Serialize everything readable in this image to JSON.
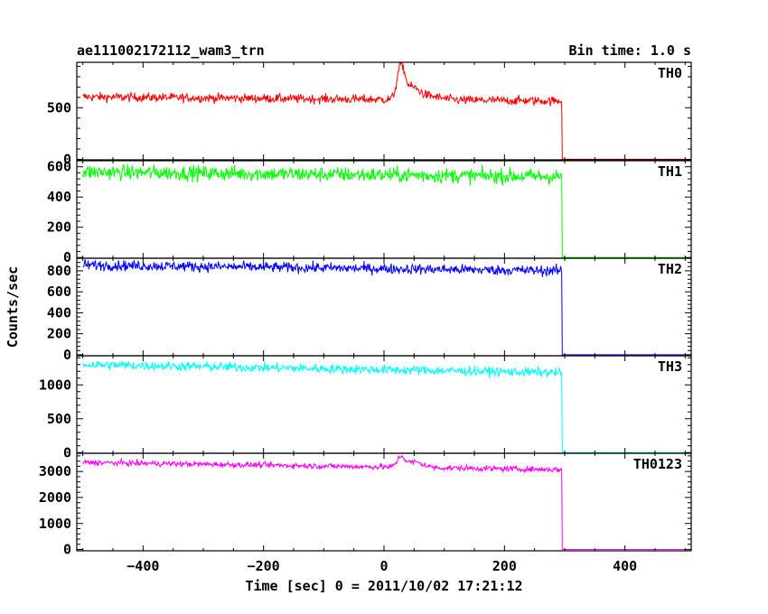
{
  "chart_data": {
    "type": "line",
    "title_left": "ae111002172112_wam3_trn",
    "title_right": "Bin time: 1.0 s",
    "xlabel": "Time [sec] 0 = 2011/10/02 17:21:12",
    "ylabel": "Counts/sec",
    "xlim": [
      -510,
      510
    ],
    "xticks": [
      -400,
      -200,
      0,
      200,
      400
    ],
    "x_step": 1.0,
    "data_x_range": [
      -500,
      500
    ],
    "cutoff_x": 296,
    "panels": [
      {
        "name": "TH0",
        "color": "#ff0000",
        "ylim": [
          -5,
          940
        ],
        "yticks": [
          0,
          500
        ],
        "baseline_start": 605,
        "baseline_end": 565,
        "noise": 22,
        "flare": [
          {
            "x": 28,
            "peak": 940,
            "width": 6
          },
          {
            "x": 45,
            "peak": 700,
            "width": 12
          },
          {
            "x": 70,
            "peak": 620,
            "width": 22
          }
        ],
        "after_value": 0
      },
      {
        "name": "TH1",
        "color": "#00ff00",
        "ylim": [
          -5,
          640
        ],
        "yticks": [
          0,
          200,
          400,
          600
        ],
        "baseline_start": 565,
        "baseline_end": 535,
        "noise": 25,
        "flare": [],
        "after_value": 0
      },
      {
        "name": "TH2",
        "color": "#0000ff",
        "ylim": [
          -10,
          920
        ],
        "yticks": [
          0,
          200,
          400,
          600,
          800
        ],
        "baseline_start": 855,
        "baseline_end": 800,
        "noise": 25,
        "flare": [],
        "after_value": 0
      },
      {
        "name": "TH3",
        "color": "#00ffff",
        "ylim": [
          -10,
          1430
        ],
        "yticks": [
          0,
          500,
          1000
        ],
        "baseline_start": 1300,
        "baseline_end": 1180,
        "noise": 35,
        "flare": [],
        "after_value": 0
      },
      {
        "name": "TH0123",
        "color": "#ff00ff",
        "ylim": [
          -50,
          3700
        ],
        "yticks": [
          0,
          1000,
          2000,
          3000
        ],
        "baseline_start": 3350,
        "baseline_end": 3070,
        "noise": 55,
        "flare": [
          {
            "x": 28,
            "peak": 3600,
            "width": 6
          },
          {
            "x": 50,
            "peak": 3400,
            "width": 14
          }
        ],
        "after_value": 0
      }
    ]
  }
}
